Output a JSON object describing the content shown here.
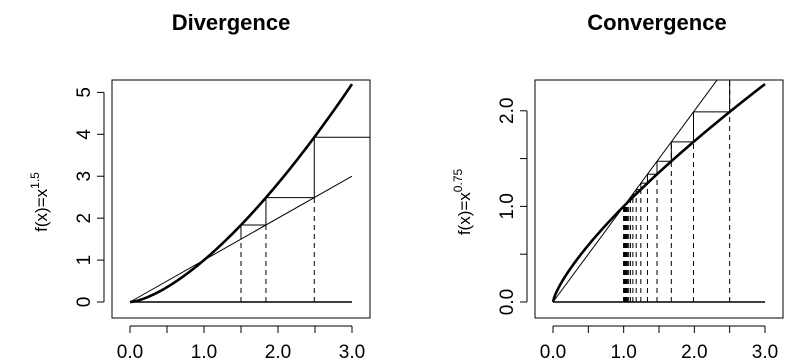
{
  "chart_data": [
    {
      "type": "line",
      "title": "Divergence",
      "ylabel": "f(x)=x",
      "ylabel_exponent": "1.5",
      "xlabel": "",
      "xlim": [
        0,
        3
      ],
      "ylim": [
        0,
        5.2
      ],
      "x_ticks": [
        0,
        0.5,
        1,
        1.5,
        2,
        2.5,
        3
      ],
      "x_tick_labels": [
        "0.0",
        "",
        "1.0",
        "",
        "2.0",
        "",
        "3.0"
      ],
      "y_ticks": [
        0,
        1,
        2,
        3,
        4,
        5
      ],
      "y_tick_labels": [
        "0",
        "1",
        "2",
        "3",
        "4",
        "5"
      ],
      "curve": {
        "exponent": 1.5,
        "x_range": [
          0,
          3
        ]
      },
      "diagonal": {
        "x_range": [
          0,
          3
        ]
      },
      "baseline": {
        "y": 0,
        "x_range": [
          0,
          3
        ]
      },
      "cobweb_start": 1.5,
      "cobweb_iterations": 4,
      "cobweb_x_max": 3,
      "grid": false,
      "legend": "none"
    },
    {
      "type": "line",
      "title": "Convergence",
      "ylabel": "f(x)=x",
      "ylabel_exponent": "0.75",
      "xlabel": "",
      "xlim": [
        0,
        3
      ],
      "ylim": [
        0,
        2.28
      ],
      "x_ticks": [
        0,
        0.5,
        1,
        1.5,
        2,
        2.5,
        3
      ],
      "x_tick_labels": [
        "0.0",
        "",
        "1.0",
        "",
        "2.0",
        "",
        "3.0"
      ],
      "y_ticks": [
        0,
        0.5,
        1,
        1.5,
        2
      ],
      "y_tick_labels": [
        "0.0",
        "",
        "1.0",
        "",
        "2.0"
      ],
      "curve": {
        "exponent": 0.75,
        "x_range": [
          0,
          3
        ]
      },
      "diagonal": {
        "x_range": [
          0,
          3
        ]
      },
      "baseline": {
        "y": 0,
        "x_range": [
          0,
          3
        ]
      },
      "cobweb_start": 2.5,
      "cobweb_iterations": 24,
      "cobweb_x_max": 3,
      "grid": false,
      "legend": "none"
    }
  ]
}
